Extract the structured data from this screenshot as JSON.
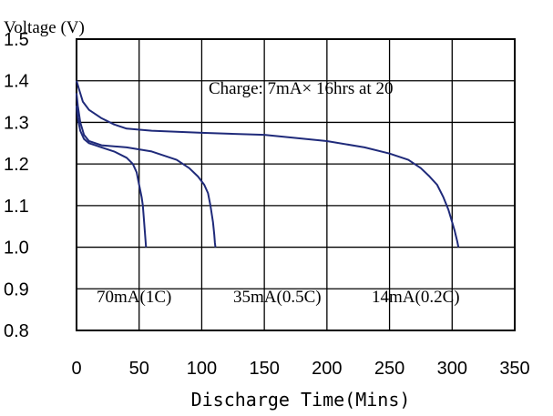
{
  "chart_data": {
    "type": "line",
    "title": "",
    "xlabel": "Discharge Time(Mins)",
    "ylabel": "Voltage (V)",
    "xlim": [
      0,
      350
    ],
    "ylim": [
      0.8,
      1.5
    ],
    "x_ticks": [
      "0",
      "50",
      "100",
      "150",
      "200",
      "250",
      "300",
      "350"
    ],
    "y_ticks": [
      "1.5",
      "1.4",
      "1.3",
      "1.2",
      "1.1",
      "1.0",
      "0.9",
      "0.8"
    ],
    "grid": true,
    "annotations": {
      "charge": "Charge: 7mA× 16hrs at 20",
      "labels": [
        "70mA(1C)",
        "35mA(0.5C)",
        "14mA(0.2C)"
      ]
    },
    "line_color": "#1f2a7a",
    "series": [
      {
        "x": [
          0,
          1,
          3,
          6,
          10,
          15,
          20,
          30,
          40,
          45,
          48,
          50,
          52,
          53,
          54,
          55,
          55.5
        ],
        "y": [
          1.34,
          1.31,
          1.28,
          1.26,
          1.25,
          1.245,
          1.24,
          1.23,
          1.215,
          1.2,
          1.18,
          1.15,
          1.12,
          1.1,
          1.06,
          1.02,
          1.0
        ]
      },
      {
        "x": [
          0,
          1,
          3,
          6,
          10,
          20,
          40,
          60,
          80,
          90,
          97,
          102,
          105,
          107,
          108,
          109,
          110,
          110.5,
          111
        ],
        "y": [
          1.37,
          1.34,
          1.3,
          1.27,
          1.255,
          1.245,
          1.24,
          1.23,
          1.21,
          1.19,
          1.17,
          1.15,
          1.13,
          1.1,
          1.08,
          1.06,
          1.03,
          1.01,
          1.0
        ]
      },
      {
        "x": [
          0,
          2,
          5,
          10,
          20,
          30,
          40,
          60,
          100,
          150,
          200,
          230,
          250,
          265,
          275,
          282,
          288,
          293,
          297,
          300,
          302,
          304,
          305
        ],
        "y": [
          1.4,
          1.38,
          1.35,
          1.33,
          1.31,
          1.295,
          1.285,
          1.28,
          1.275,
          1.27,
          1.255,
          1.24,
          1.225,
          1.21,
          1.19,
          1.17,
          1.15,
          1.12,
          1.09,
          1.06,
          1.04,
          1.015,
          1.0
        ]
      }
    ]
  }
}
